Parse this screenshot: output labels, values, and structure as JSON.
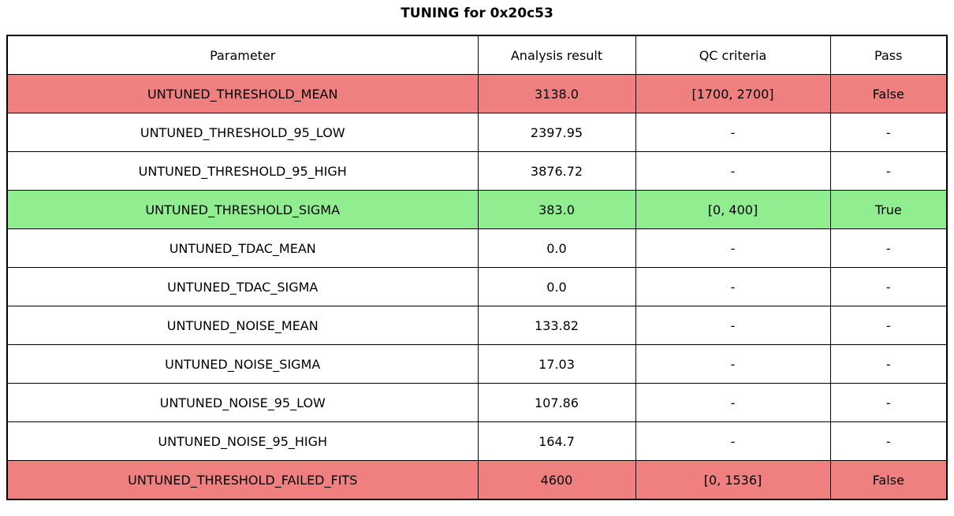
{
  "title": "TUNING for 0x20c53",
  "chart_data": {
    "type": "table",
    "title": "TUNING for 0x20c53",
    "columns": [
      "Parameter",
      "Analysis result",
      "QC criteria",
      "Pass"
    ],
    "rows": [
      {
        "parameter": "UNTUNED_THRESHOLD_MEAN",
        "result": "3138.0",
        "qc": "[1700, 2700]",
        "pass": "False",
        "status": "fail"
      },
      {
        "parameter": "UNTUNED_THRESHOLD_95_LOW",
        "result": "2397.95",
        "qc": "-",
        "pass": "-",
        "status": "neutral"
      },
      {
        "parameter": "UNTUNED_THRESHOLD_95_HIGH",
        "result": "3876.72",
        "qc": "-",
        "pass": "-",
        "status": "neutral"
      },
      {
        "parameter": "UNTUNED_THRESHOLD_SIGMA",
        "result": "383.0",
        "qc": "[0, 400]",
        "pass": "True",
        "status": "pass"
      },
      {
        "parameter": "UNTUNED_TDAC_MEAN",
        "result": "0.0",
        "qc": "-",
        "pass": "-",
        "status": "neutral"
      },
      {
        "parameter": "UNTUNED_TDAC_SIGMA",
        "result": "0.0",
        "qc": "-",
        "pass": "-",
        "status": "neutral"
      },
      {
        "parameter": "UNTUNED_NOISE_MEAN",
        "result": "133.82",
        "qc": "-",
        "pass": "-",
        "status": "neutral"
      },
      {
        "parameter": "UNTUNED_NOISE_SIGMA",
        "result": "17.03",
        "qc": "-",
        "pass": "-",
        "status": "neutral"
      },
      {
        "parameter": "UNTUNED_NOISE_95_LOW",
        "result": "107.86",
        "qc": "-",
        "pass": "-",
        "status": "neutral"
      },
      {
        "parameter": "UNTUNED_NOISE_95_HIGH",
        "result": "164.7",
        "qc": "-",
        "pass": "-",
        "status": "neutral"
      },
      {
        "parameter": "UNTUNED_THRESHOLD_FAILED_FITS",
        "result": "4600",
        "qc": "[0, 1536]",
        "pass": "False",
        "status": "fail"
      }
    ],
    "row_colors": {
      "fail": "#f08080",
      "pass": "#90ee90",
      "neutral": "#ffffff"
    },
    "layout": {
      "grid": "on",
      "border_color": "#000000",
      "text_color": "#000000"
    }
  }
}
